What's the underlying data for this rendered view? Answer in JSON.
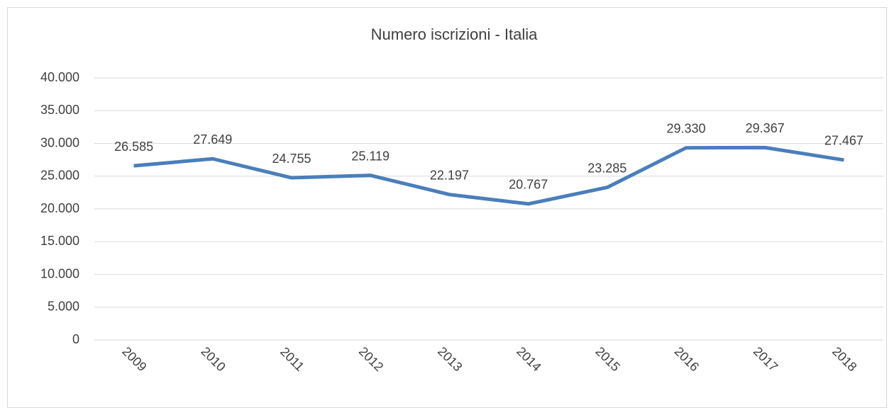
{
  "chart_data": {
    "type": "line",
    "title": "Numero iscrizioni - Italia",
    "categories": [
      "2009",
      "2010",
      "2011",
      "2012",
      "2013",
      "2014",
      "2015",
      "2016",
      "2017",
      "2018"
    ],
    "series": [
      {
        "name": "Numero iscrizioni",
        "color": "#4a7ebb",
        "values": [
          26585,
          27649,
          24755,
          25119,
          22197,
          20767,
          23285,
          29330,
          29367,
          27467
        ],
        "value_labels": [
          "26.585",
          "27.649",
          "24.755",
          "25.119",
          "22.197",
          "20.767",
          "23.285",
          "29.330",
          "29.367",
          "27.467"
        ]
      }
    ],
    "ylim": [
      0,
      40000
    ],
    "yticks": [
      0,
      {
        "value": 5000,
        "label": "5.000"
      },
      {
        "value": 10000,
        "label": "10.000"
      },
      {
        "value": 15000,
        "label": "15.000"
      },
      {
        "value": 20000,
        "label": "20.000"
      },
      {
        "value": 25000,
        "label": "25.000"
      },
      {
        "value": 30000,
        "label": "30.000"
      },
      {
        "value": 35000,
        "label": "35.000"
      },
      {
        "value": 40000,
        "label": "40.000"
      }
    ],
    "grid": true
  }
}
